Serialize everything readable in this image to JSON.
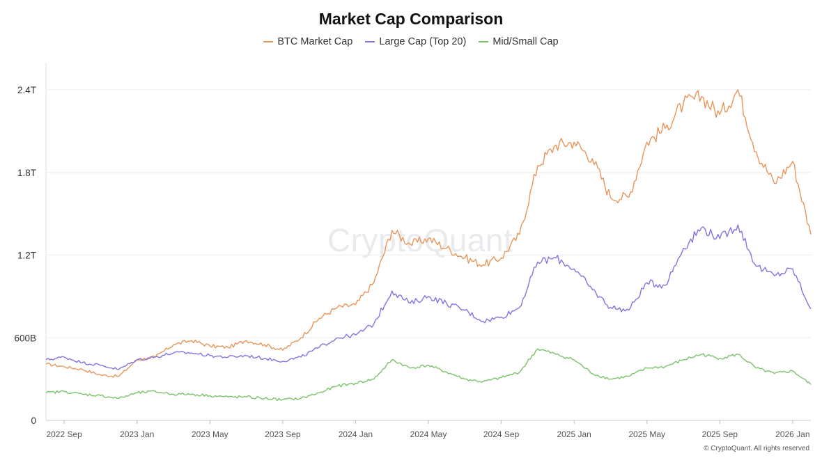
{
  "chart_data": {
    "type": "line",
    "title": "Market Cap Comparison",
    "x_ticks": [
      "2022 Sep",
      "2023 Jan",
      "2023 May",
      "2023 Sep",
      "2024 Jan",
      "2024 May",
      "2024 Sep",
      "2025 Jan",
      "2025 May",
      "2025 Sep",
      "2026 Jan"
    ],
    "y_ticks": [
      "0",
      "600B",
      "1.2T",
      "1.8T",
      "2.4T"
    ],
    "ylim": [
      0,
      2.4
    ],
    "y_unit": "T",
    "xlim": [
      "2022-08",
      "2026-02"
    ],
    "grid": "horizontal",
    "legend_position": "top-center",
    "x": [
      "2022-08",
      "2022-09",
      "2022-10",
      "2022-11",
      "2022-12",
      "2023-01",
      "2023-02",
      "2023-03",
      "2023-04",
      "2023-05",
      "2023-06",
      "2023-07",
      "2023-08",
      "2023-09",
      "2023-10",
      "2023-11",
      "2023-12",
      "2024-01",
      "2024-02",
      "2024-03",
      "2024-04",
      "2024-05",
      "2024-06",
      "2024-07",
      "2024-08",
      "2024-09",
      "2024-10",
      "2024-11",
      "2024-12",
      "2025-01",
      "2025-02",
      "2025-03",
      "2025-04",
      "2025-05",
      "2025-06",
      "2025-07",
      "2025-08",
      "2025-09",
      "2025-10",
      "2025-11",
      "2025-12",
      "2026-01",
      "2026-02"
    ],
    "series": [
      {
        "name": "BTC Market Cap",
        "color": "#e8955a",
        "values": [
          0.41,
          0.39,
          0.37,
          0.33,
          0.32,
          0.44,
          0.46,
          0.55,
          0.58,
          0.54,
          0.53,
          0.58,
          0.55,
          0.51,
          0.6,
          0.74,
          0.82,
          0.84,
          1.0,
          1.38,
          1.28,
          1.32,
          1.25,
          1.18,
          1.13,
          1.18,
          1.35,
          1.85,
          2.0,
          2.02,
          1.9,
          1.62,
          1.62,
          2.02,
          2.12,
          2.3,
          2.35,
          2.22,
          2.4,
          1.95,
          1.72,
          1.88,
          1.35
        ]
      },
      {
        "name": "Large Cap (Top 20)",
        "color": "#8075e0",
        "values": [
          0.44,
          0.46,
          0.42,
          0.4,
          0.37,
          0.44,
          0.46,
          0.49,
          0.49,
          0.47,
          0.46,
          0.47,
          0.45,
          0.43,
          0.46,
          0.53,
          0.6,
          0.62,
          0.7,
          0.94,
          0.85,
          0.9,
          0.85,
          0.8,
          0.72,
          0.75,
          0.82,
          1.15,
          1.18,
          1.1,
          0.95,
          0.82,
          0.8,
          1.0,
          0.98,
          1.25,
          1.4,
          1.32,
          1.42,
          1.12,
          1.05,
          1.1,
          0.81
        ]
      },
      {
        "name": "Mid/Small Cap",
        "color": "#7bc16a",
        "values": [
          0.2,
          0.21,
          0.19,
          0.18,
          0.16,
          0.2,
          0.21,
          0.19,
          0.19,
          0.18,
          0.17,
          0.17,
          0.16,
          0.15,
          0.16,
          0.2,
          0.25,
          0.27,
          0.3,
          0.44,
          0.38,
          0.4,
          0.35,
          0.3,
          0.28,
          0.31,
          0.35,
          0.52,
          0.48,
          0.44,
          0.34,
          0.3,
          0.32,
          0.38,
          0.39,
          0.44,
          0.48,
          0.45,
          0.48,
          0.38,
          0.34,
          0.36,
          0.26
        ]
      }
    ]
  },
  "watermark": "CryptoQuant",
  "copyright": "© CryptoQuant. All rights reserved"
}
